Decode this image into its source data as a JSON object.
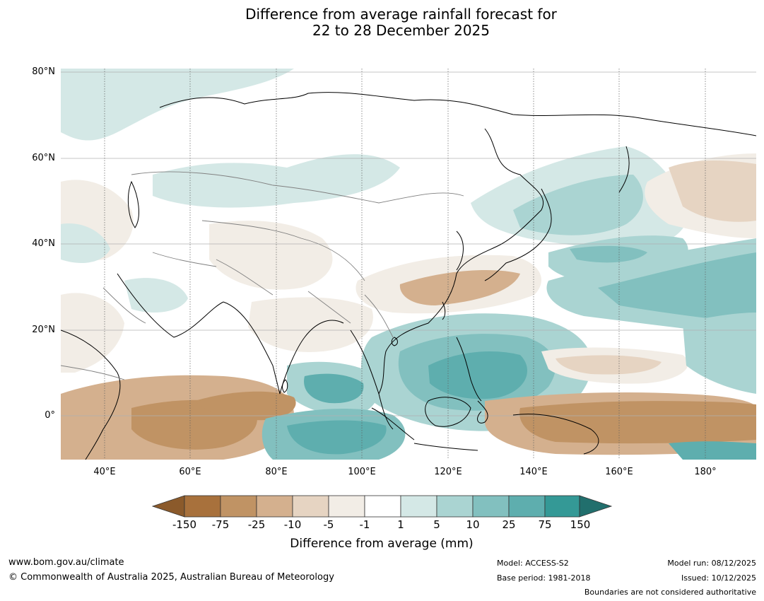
{
  "title_line1": "Difference from average rainfall forecast for",
  "title_line2": "22 to 28 December 2025",
  "map": {
    "lat_labels": [
      "80°N",
      "60°N",
      "40°N",
      "20°N",
      "0°"
    ],
    "lon_labels": [
      "40°E",
      "60°E",
      "80°E",
      "100°E",
      "120°E",
      "140°E",
      "160°E",
      "180°"
    ],
    "extent": {
      "lon_min": 30,
      "lon_max": 192,
      "lat_min": -10,
      "lat_max": 80
    },
    "colors": {
      "land_line": "#000000",
      "border_line": "#808080",
      "grid_line": "#b0b0b0"
    }
  },
  "legend": {
    "title": "Difference from average (mm)",
    "ticks": [
      "-150",
      "-75",
      "-25",
      "-10",
      "-5",
      "-1",
      "1",
      "5",
      "10",
      "25",
      "75",
      "150"
    ],
    "colors": [
      "#8b5a2b",
      "#a8713c",
      "#c09364",
      "#d4b08e",
      "#e6d4c2",
      "#f2ede6",
      "#ffffff",
      "#d4e8e6",
      "#aad4d2",
      "#82c0bf",
      "#5eaeae",
      "#349996",
      "#216f6d"
    ]
  },
  "footer": {
    "website": "www.bom.gov.au/climate",
    "copyright": "© Commonwealth of Australia 2025, Australian Bureau of Meteorology",
    "model": "Model: ACCESS-S2",
    "base_period": "Base period: 1981-2018",
    "model_run": "Model run: 08/12/2025",
    "issued": "Issued: 10/12/2025",
    "disclaimer": "Boundaries are not considered authoritative"
  }
}
